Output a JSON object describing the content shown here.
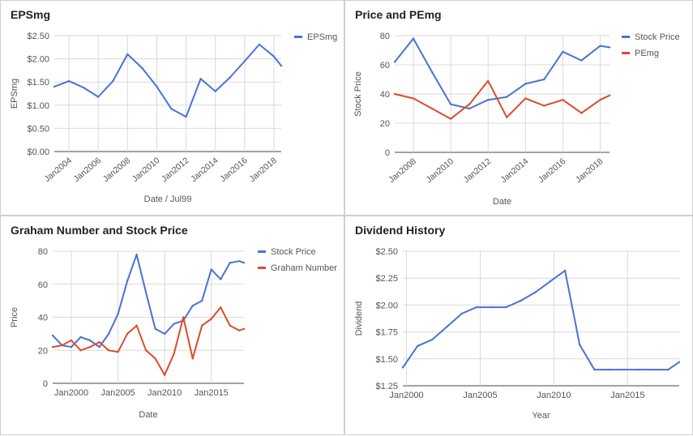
{
  "colors": {
    "blue": "#4a72d4",
    "red": "#dc4b2c",
    "grid": "#d9d9d9",
    "axis": "#444444",
    "tick_text": "#555555"
  },
  "chart_data": [
    {
      "type": "line",
      "title": "EPSmg",
      "xlabel": "Date / Jul99",
      "ylabel": "EPSmg",
      "x_ticks": [
        "Jan2004",
        "Jan2006",
        "Jan2008",
        "Jan2010",
        "Jan2012",
        "Jan2014",
        "Jan2016",
        "Jan2018"
      ],
      "y_ticks": [
        "$0.00",
        "$0.50",
        "$1.00",
        "$1.50",
        "$2.00",
        "$2.50"
      ],
      "ylim": [
        0,
        2.5
      ],
      "xlim": [
        "2003-01",
        "2018-07"
      ],
      "grid": true,
      "legend": "top-right",
      "series": [
        {
          "name": "EPSmg",
          "color": "#4a72d4",
          "x": [
            "2003-01",
            "2004-01",
            "2005-01",
            "2006-01",
            "2007-01",
            "2008-01",
            "2009-01",
            "2010-01",
            "2011-01",
            "2012-01",
            "2013-01",
            "2014-01",
            "2015-01",
            "2016-01",
            "2017-01",
            "2018-01",
            "2018-07"
          ],
          "values": [
            1.4,
            1.52,
            1.38,
            1.18,
            1.52,
            2.1,
            1.8,
            1.4,
            0.92,
            0.75,
            1.57,
            1.3,
            1.6,
            1.95,
            2.31,
            2.05,
            1.85
          ]
        }
      ]
    },
    {
      "type": "line",
      "title": "Price and PEmg",
      "xlabel": "Date",
      "ylabel": "Stock Price",
      "x_ticks": [
        "Jan2008",
        "Jan2010",
        "Jan2012",
        "Jan2014",
        "Jan2016",
        "Jan2018"
      ],
      "y_ticks": [
        "0",
        "20",
        "40",
        "60",
        "80"
      ],
      "ylim": [
        0,
        80
      ],
      "xlim": [
        "2007-01",
        "2018-07"
      ],
      "grid": true,
      "legend": "top-right",
      "series": [
        {
          "name": "Stock Price",
          "color": "#4a72d4",
          "x": [
            "2007-01",
            "2008-01",
            "2009-01",
            "2010-01",
            "2011-01",
            "2012-01",
            "2013-01",
            "2014-01",
            "2015-01",
            "2016-01",
            "2017-01",
            "2018-01",
            "2018-07"
          ],
          "values": [
            62,
            78,
            55,
            33,
            30,
            36,
            38,
            47,
            50,
            69,
            63,
            73,
            72
          ]
        },
        {
          "name": "PEmg",
          "color": "#dc4b2c",
          "x": [
            "2007-01",
            "2008-01",
            "2009-01",
            "2010-01",
            "2011-01",
            "2012-01",
            "2013-01",
            "2014-01",
            "2015-01",
            "2016-01",
            "2017-01",
            "2018-01",
            "2018-07"
          ],
          "values": [
            40,
            37,
            30,
            23,
            33,
            49,
            24,
            37,
            32,
            36,
            27,
            36,
            39
          ]
        }
      ]
    },
    {
      "type": "line",
      "title": "Graham Number and Stock Price",
      "xlabel": "Date",
      "ylabel": "Price",
      "x_ticks": [
        "Jan2000",
        "Jan2005",
        "Jan2010",
        "Jan2015"
      ],
      "y_ticks": [
        "0",
        "20",
        "40",
        "60",
        "80"
      ],
      "ylim": [
        0,
        80
      ],
      "xlim": [
        "1998-01",
        "2018-07"
      ],
      "grid": true,
      "legend": "top-right",
      "series": [
        {
          "name": "Stock Price",
          "color": "#4a72d4",
          "x": [
            "1998-01",
            "1999-01",
            "2000-01",
            "2001-01",
            "2002-01",
            "2003-01",
            "2004-01",
            "2005-01",
            "2006-01",
            "2007-01",
            "2008-01",
            "2009-01",
            "2010-01",
            "2011-01",
            "2012-01",
            "2013-01",
            "2014-01",
            "2015-01",
            "2016-01",
            "2017-01",
            "2018-01",
            "2018-07"
          ],
          "values": [
            29,
            23,
            22,
            28,
            26,
            22,
            30,
            42,
            62,
            78,
            55,
            33,
            30,
            36,
            38,
            47,
            50,
            69,
            63,
            73,
            74,
            73
          ]
        },
        {
          "name": "Graham Number",
          "color": "#dc4b2c",
          "x": [
            "1998-01",
            "1999-01",
            "2000-01",
            "2001-01",
            "2002-01",
            "2003-01",
            "2004-01",
            "2005-01",
            "2006-01",
            "2007-01",
            "2008-01",
            "2009-01",
            "2010-01",
            "2011-01",
            "2012-01",
            "2013-01",
            "2014-01",
            "2015-01",
            "2016-01",
            "2017-01",
            "2018-01",
            "2018-07"
          ],
          "values": [
            22,
            23,
            26,
            20,
            22,
            25,
            20,
            19,
            30,
            35,
            20,
            15,
            5,
            18,
            40,
            15,
            35,
            39,
            46,
            35,
            32,
            33
          ]
        }
      ]
    },
    {
      "type": "line",
      "title": "Dividend History",
      "xlabel": "Year",
      "ylabel": "Dividend",
      "x_ticks": [
        "Jan2000",
        "Jan2005",
        "Jan2010",
        "Jan2015"
      ],
      "y_ticks": [
        "$1.25",
        "$1.50",
        "$1.75",
        "$2.00",
        "$2.25",
        "$2.50"
      ],
      "ylim": [
        1.25,
        2.5
      ],
      "xlim": [
        "1999-10",
        "2018-07"
      ],
      "grid": true,
      "legend": "none",
      "series": [
        {
          "name": "",
          "color": "#4a72d4",
          "x": [
            "1999-10",
            "2000-10",
            "2001-10",
            "2002-10",
            "2003-10",
            "2004-10",
            "2005-10",
            "2006-10",
            "2007-10",
            "2008-10",
            "2009-10",
            "2010-10",
            "2011-10",
            "2012-10",
            "2013-10",
            "2014-10",
            "2015-10",
            "2016-10",
            "2017-10",
            "2018-07"
          ],
          "values": [
            1.42,
            1.62,
            1.68,
            1.8,
            1.92,
            1.98,
            1.98,
            1.98,
            2.04,
            2.12,
            2.22,
            2.32,
            1.63,
            1.4,
            1.4,
            1.4,
            1.4,
            1.4,
            1.4,
            1.47
          ]
        }
      ]
    }
  ]
}
